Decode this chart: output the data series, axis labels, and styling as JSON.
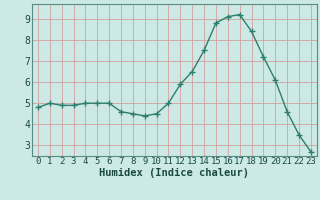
{
  "x": [
    0,
    1,
    2,
    3,
    4,
    5,
    6,
    7,
    8,
    9,
    10,
    11,
    12,
    13,
    14,
    15,
    16,
    17,
    18,
    19,
    20,
    21,
    22,
    23
  ],
  "y": [
    4.8,
    5.0,
    4.9,
    4.9,
    5.0,
    5.0,
    5.0,
    4.6,
    4.5,
    4.4,
    4.5,
    5.0,
    5.9,
    6.5,
    7.5,
    8.8,
    9.1,
    9.2,
    8.4,
    7.2,
    6.1,
    4.6,
    3.5,
    2.7
  ],
  "line_color": "#2e7d6e",
  "marker": "+",
  "marker_size": 4,
  "bg_color": "#cce9e5",
  "grid_color": "#d4a0a0",
  "xlabel": "Humidex (Indice chaleur)",
  "ylim": [
    2.5,
    9.7
  ],
  "xlim": [
    -0.5,
    23.5
  ],
  "yticks": [
    3,
    4,
    5,
    6,
    7,
    8,
    9
  ],
  "xticks": [
    0,
    1,
    2,
    3,
    4,
    5,
    6,
    7,
    8,
    9,
    10,
    11,
    12,
    13,
    14,
    15,
    16,
    17,
    18,
    19,
    20,
    21,
    22,
    23
  ],
  "tick_fontsize": 6.5,
  "xlabel_fontsize": 7.5,
  "spine_color": "#5a8a84"
}
